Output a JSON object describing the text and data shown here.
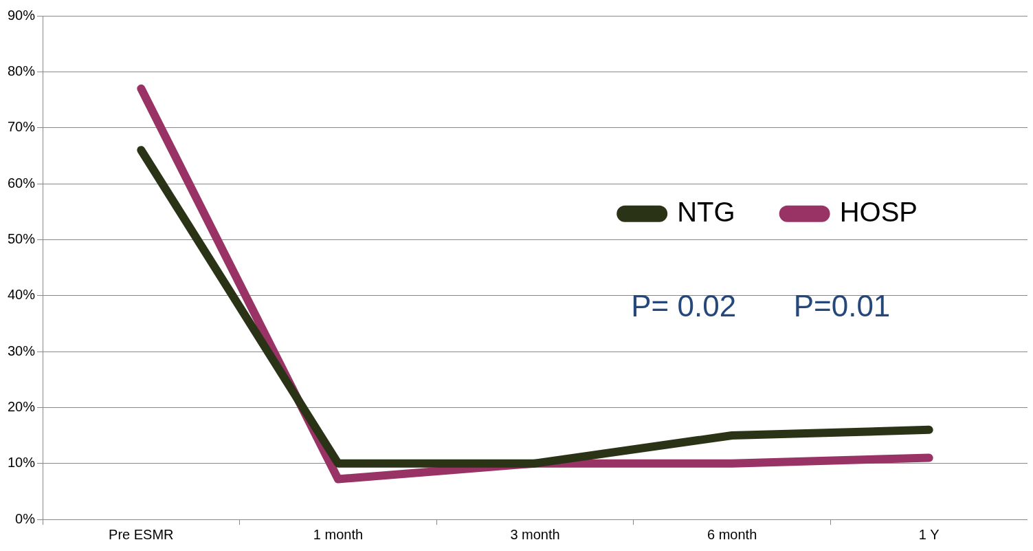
{
  "chart_data": {
    "type": "line",
    "categories": [
      "Pre ESMR",
      "1 month",
      "3 month",
      "6 month",
      "1 Y"
    ],
    "series": [
      {
        "name": "NTG",
        "color": "#2b3316",
        "values": [
          66,
          10,
          10,
          15,
          16
        ]
      },
      {
        "name": "HOSP",
        "color": "#993366",
        "values": [
          77,
          7.2,
          10,
          10,
          11
        ]
      }
    ],
    "ylim": [
      0,
      90
    ],
    "yticks": [
      {
        "value": 0,
        "label": "0%"
      },
      {
        "value": 10,
        "label": "10%"
      },
      {
        "value": 20,
        "label": "20%"
      },
      {
        "value": 30,
        "label": "30%"
      },
      {
        "value": 40,
        "label": "40%"
      },
      {
        "value": 50,
        "label": "50%"
      },
      {
        "value": 60,
        "label": "60%"
      },
      {
        "value": 70,
        "label": "70%"
      },
      {
        "value": 80,
        "label": "80%"
      },
      {
        "value": 90,
        "label": "90%"
      }
    ],
    "grid": "y",
    "legend": "top right",
    "marker": "none",
    "line_style": "solid",
    "annotations": [
      "P= 0.02",
      "P=0.01"
    ]
  }
}
